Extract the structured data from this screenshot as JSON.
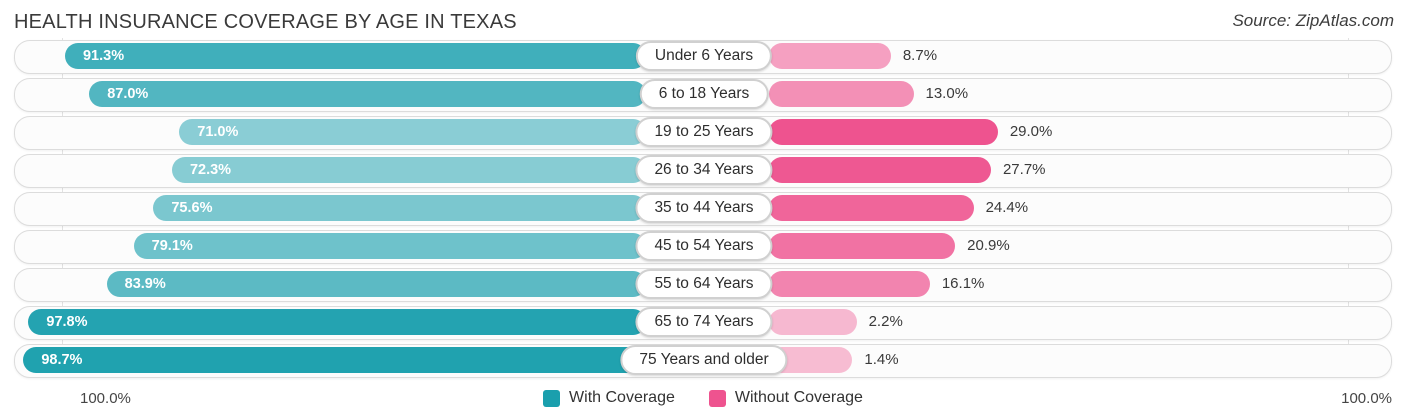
{
  "header": {
    "title": "HEALTH INSURANCE COVERAGE BY AGE IN TEXAS",
    "source": "Source: ZipAtlas.com"
  },
  "legend": [
    {
      "label": "With Coverage",
      "color": "#1A9FAD"
    },
    {
      "label": "Without Coverage",
      "color": "#EE538F"
    }
  ],
  "footer": {
    "left_axis_label": "100.0%",
    "right_axis_label": "100.0%"
  },
  "chart_data": {
    "type": "bar",
    "variant": "diverging-horizontal",
    "title": "HEALTH INSURANCE COVERAGE BY AGE IN TEXAS",
    "categories": [
      "Under 6 Years",
      "6 to 18 Years",
      "19 to 25 Years",
      "26 to 34 Years",
      "35 to 44 Years",
      "45 to 54 Years",
      "55 to 64 Years",
      "65 to 74 Years",
      "75 Years and older"
    ],
    "series": [
      {
        "name": "With Coverage",
        "side": "left",
        "color": "#1A9FAD",
        "values": [
          91.3,
          87.0,
          71.0,
          72.3,
          75.6,
          79.1,
          83.9,
          97.8,
          98.7
        ],
        "labels": [
          "91.3%",
          "87.0%",
          "71.0%",
          "72.3%",
          "75.6%",
          "79.1%",
          "83.9%",
          "97.8%",
          "98.7%"
        ]
      },
      {
        "name": "Without Coverage",
        "side": "right",
        "color": "#EE538F",
        "values": [
          8.7,
          13.0,
          29.0,
          27.7,
          24.4,
          20.9,
          16.1,
          2.2,
          1.4
        ],
        "labels": [
          "8.7%",
          "13.0%",
          "29.0%",
          "27.7%",
          "24.4%",
          "20.9%",
          "16.1%",
          "2.2%",
          "1.4%"
        ]
      }
    ],
    "axis": {
      "left_end_label": "100.0%",
      "right_end_label": "100.0%",
      "max_each_side": 100
    },
    "grid": "faint vertical lines at 100% marks",
    "legend_position": "bottom-center"
  }
}
